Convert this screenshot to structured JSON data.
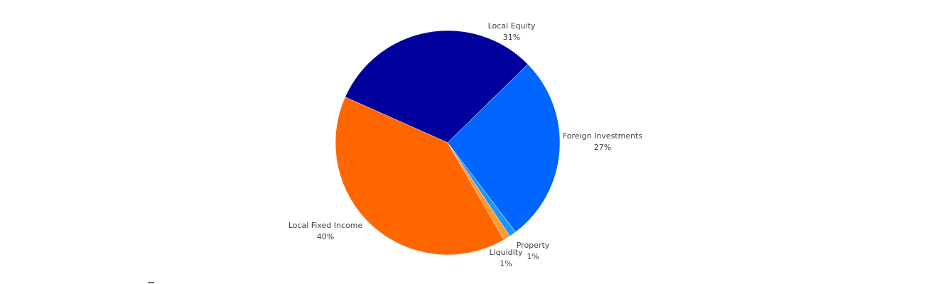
{
  "chart_data": {
    "type": "pie",
    "categories": [
      "Local Equity",
      "Foreign Investments",
      "Property",
      "Liquidity",
      "Local Fixed Income"
    ],
    "values": [
      31,
      27,
      1,
      1,
      40
    ],
    "value_labels": [
      "31%",
      "27%",
      "1%",
      "1%",
      "40%"
    ],
    "colors": [
      "#00009c",
      "#0066ff",
      "#1a96ff",
      "#ff9933",
      "#ff6600"
    ]
  }
}
